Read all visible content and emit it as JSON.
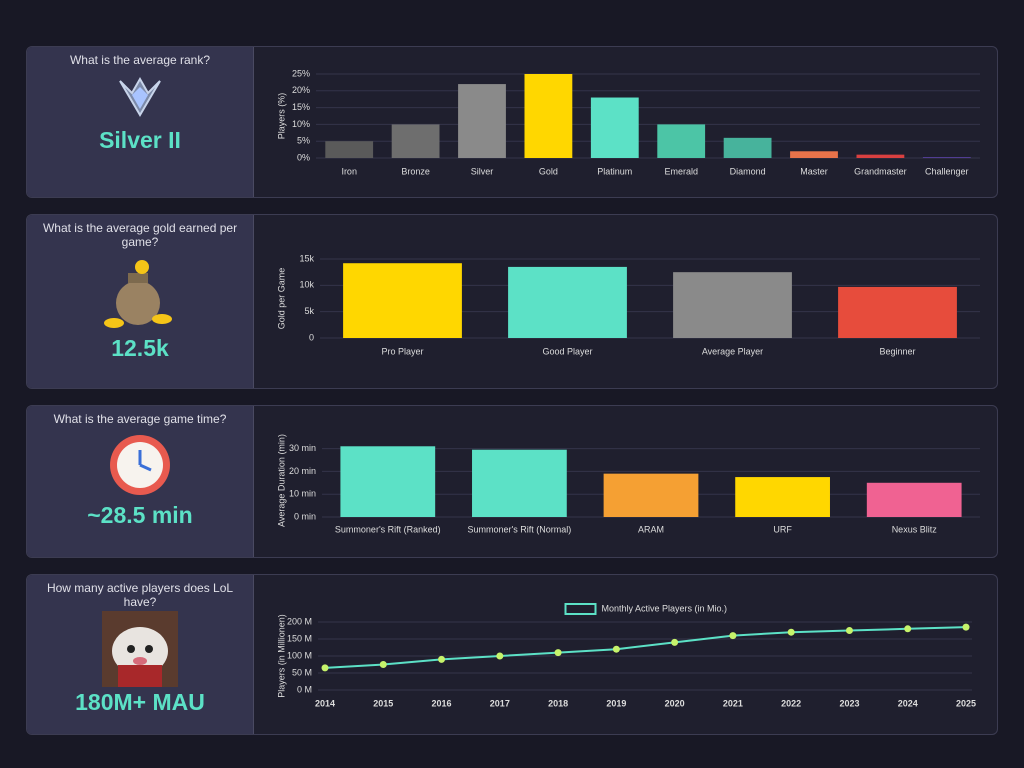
{
  "cards": [
    {
      "question": "What is the average rank?",
      "answer": "Silver II"
    },
    {
      "question": "What is the average gold earned per game?",
      "answer": "12.5k"
    },
    {
      "question": "What is the average game time?",
      "answer": "~28.5 min"
    },
    {
      "question": "How many active players does LoL have?",
      "answer": "180M+ MAU"
    }
  ],
  "chart_data": [
    {
      "type": "bar",
      "y_label": "Players (%)",
      "categories": [
        "Iron",
        "Bronze",
        "Silver",
        "Gold",
        "Platinum",
        "Emerald",
        "Diamond",
        "Master",
        "Grandmaster",
        "Challenger"
      ],
      "values": [
        5,
        10,
        22,
        25,
        18,
        10,
        6,
        2,
        1,
        0.2
      ],
      "colors": [
        "#5a5a5a",
        "#6e6e6e",
        "#8a8a8a",
        "#ffd700",
        "#5ce1c6",
        "#4cc5a6",
        "#47b39c",
        "#e8734a",
        "#d94040",
        "#6a4cc2"
      ],
      "ylim": [
        0,
        25
      ],
      "yticks": [
        {
          "value": 0,
          "label": "0%"
        },
        {
          "value": 5,
          "label": "5%"
        },
        {
          "value": 10,
          "label": "10%"
        },
        {
          "value": 15,
          "label": "15%"
        },
        {
          "value": 20,
          "label": "20%"
        },
        {
          "value": 25,
          "label": "25%"
        }
      ],
      "grid": true
    },
    {
      "type": "bar",
      "y_label": "Gold per Game",
      "categories": [
        "Pro Player",
        "Good Player",
        "Average Player",
        "Beginner"
      ],
      "values": [
        14200,
        13500,
        12500,
        9700
      ],
      "colors": [
        "#ffd700",
        "#5ce1c6",
        "#8a8a8a",
        "#e74c3c"
      ],
      "ylim": [
        0,
        15000
      ],
      "yticks": [
        0,
        {
          "value": 5000,
          "label": "5k"
        },
        {
          "value": 10000,
          "label": "10k"
        },
        {
          "value": 15000,
          "label": "15k"
        }
      ],
      "grid": true
    },
    {
      "type": "bar",
      "y_label": "Average Duration (min)",
      "categories": [
        "Summoner's Rift (Ranked)",
        "Summoner's Rift (Normal)",
        "ARAM",
        "URF",
        "Nexus Blitz"
      ],
      "values": [
        31,
        29.5,
        19,
        17.5,
        15
      ],
      "colors": [
        "#5ce1c6",
        "#5ce1c6",
        "#f5a033",
        "#ffd700",
        "#f06292"
      ],
      "ylim": [
        0,
        32
      ],
      "yticks": [
        {
          "value": 0,
          "label": "0 min"
        },
        {
          "value": 10,
          "label": "10 min"
        },
        {
          "value": 20,
          "label": "20 min"
        },
        {
          "value": 30,
          "label": "30 min"
        }
      ],
      "grid": true
    },
    {
      "type": "line",
      "y_label": "Players (in Millionen)",
      "x": [
        2014,
        2015,
        2016,
        2017,
        2018,
        2019,
        2020,
        2021,
        2022,
        2023,
        2024,
        2025
      ],
      "xlim": [
        2014,
        2025
      ],
      "series": [
        {
          "name": "Monthly Active Players (in Mio.)",
          "color": "#5ce1c6",
          "point_color": "#c6f36b",
          "values": [
            65,
            75,
            90,
            100,
            110,
            120,
            140,
            160,
            170,
            175,
            180,
            185
          ]
        }
      ],
      "ylim": [
        0,
        200
      ],
      "yticks": [
        {
          "value": 0,
          "label": "0 M"
        },
        {
          "value": 50,
          "label": "50 M"
        },
        {
          "value": 100,
          "label": "100 M"
        },
        {
          "value": 150,
          "label": "150 M"
        },
        {
          "value": 200,
          "label": "200 M"
        }
      ],
      "grid": true
    }
  ]
}
